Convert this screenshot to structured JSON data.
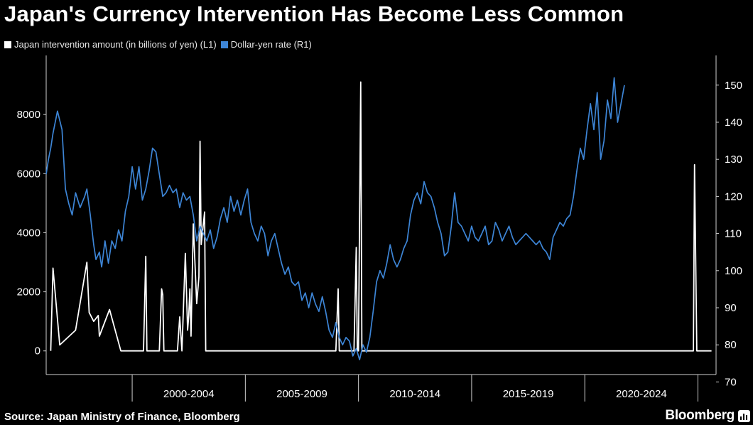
{
  "title": "Japan's Currency Intervention Has Become Less Common",
  "legend": [
    {
      "label": "Japan intervention amount (in billions of yen) (L1)",
      "color": "#ffffff"
    },
    {
      "label": "Dollar-yen rate (R1)",
      "color": "#3d85d6"
    }
  ],
  "source": "Source: Japan Ministry of Finance, Bloomberg",
  "brand": "Bloomberg",
  "chart_data": {
    "type": "line",
    "title": "Japan's Currency Intervention Has Become Less Common",
    "x_range": [
      1995.7,
      2025.3
    ],
    "x_periods": [
      "2000-2004",
      "2005-2009",
      "2010-2014",
      "2015-2019",
      "2020-2024"
    ],
    "y_left": {
      "label": "Japan intervention amount (in billions of yen)",
      "range": [
        -800,
        10000
      ],
      "ticks": [
        0,
        2000,
        4000,
        6000,
        8000
      ]
    },
    "y_right": {
      "label": "Dollar-yen rate",
      "range": [
        72,
        158
      ],
      "ticks": [
        70,
        80,
        90,
        100,
        110,
        120,
        130,
        140,
        150
      ]
    },
    "series": [
      {
        "name": "Japan intervention amount (in billions of yen) (L1)",
        "axis": "left",
        "color": "#ffffff",
        "points": [
          [
            1995.9,
            0
          ],
          [
            1996.0,
            2800
          ],
          [
            1996.3,
            200
          ],
          [
            1997.0,
            700
          ],
          [
            1997.5,
            3000
          ],
          [
            1997.6,
            1300
          ],
          [
            1997.8,
            1000
          ],
          [
            1998.0,
            1200
          ],
          [
            1998.05,
            500
          ],
          [
            1998.5,
            1400
          ],
          [
            1999.0,
            0
          ],
          [
            2000.0,
            0
          ],
          [
            2000.1,
            3200
          ],
          [
            2000.15,
            0
          ],
          [
            2000.7,
            0
          ],
          [
            2000.8,
            2100
          ],
          [
            2000.85,
            1900
          ],
          [
            2000.9,
            0
          ],
          [
            2001.5,
            0
          ],
          [
            2001.6,
            1150
          ],
          [
            2001.7,
            0
          ],
          [
            2001.85,
            3300
          ],
          [
            2001.95,
            700
          ],
          [
            2002.0,
            1200
          ],
          [
            2002.05,
            2100
          ],
          [
            2002.1,
            500
          ],
          [
            2002.2,
            4300
          ],
          [
            2002.35,
            1600
          ],
          [
            2002.45,
            2500
          ],
          [
            2002.5,
            7100
          ],
          [
            2002.55,
            3600
          ],
          [
            2002.7,
            4700
          ],
          [
            2002.75,
            0
          ],
          [
            2008.5,
            0
          ],
          [
            2008.6,
            2100
          ],
          [
            2008.65,
            0
          ],
          [
            2009.3,
            0
          ],
          [
            2009.4,
            3500
          ],
          [
            2009.45,
            0
          ],
          [
            2009.5,
            0
          ],
          [
            2009.6,
            9100
          ],
          [
            2009.65,
            0
          ],
          [
            2024.3,
            0
          ],
          [
            2024.35,
            6300
          ],
          [
            2024.45,
            0
          ],
          [
            2025.1,
            0
          ]
        ]
      },
      {
        "name": "Dollar-yen rate (R1)",
        "axis": "right",
        "color": "#3d85d6",
        "points": [
          [
            1995.7,
            126
          ],
          [
            1995.8,
            130
          ],
          [
            1995.9,
            133
          ],
          [
            1996.0,
            137
          ],
          [
            1996.2,
            143
          ],
          [
            1996.4,
            138
          ],
          [
            1996.55,
            122
          ],
          [
            1996.7,
            118
          ],
          [
            1996.85,
            115
          ],
          [
            1997.0,
            121
          ],
          [
            1997.2,
            117
          ],
          [
            1997.4,
            120
          ],
          [
            1997.5,
            122
          ],
          [
            1997.65,
            115
          ],
          [
            1997.8,
            107
          ],
          [
            1997.9,
            103
          ],
          [
            1998.05,
            105
          ],
          [
            1998.15,
            101
          ],
          [
            1998.3,
            108
          ],
          [
            1998.45,
            102
          ],
          [
            1998.6,
            108
          ],
          [
            1998.75,
            106
          ],
          [
            1998.9,
            111
          ],
          [
            1999.05,
            108
          ],
          [
            1999.2,
            116
          ],
          [
            1999.35,
            120
          ],
          [
            1999.5,
            128
          ],
          [
            1999.65,
            122
          ],
          [
            1999.8,
            128
          ],
          [
            1999.95,
            119
          ],
          [
            2000.1,
            122
          ],
          [
            2000.25,
            127
          ],
          [
            2000.4,
            133
          ],
          [
            2000.55,
            132
          ],
          [
            2000.7,
            126
          ],
          [
            2000.85,
            120
          ],
          [
            2001.0,
            121
          ],
          [
            2001.15,
            123
          ],
          [
            2001.3,
            121
          ],
          [
            2001.45,
            122
          ],
          [
            2001.6,
            117
          ],
          [
            2001.75,
            121
          ],
          [
            2001.9,
            119
          ],
          [
            2002.05,
            120
          ],
          [
            2002.2,
            115
          ],
          [
            2002.35,
            108
          ],
          [
            2002.5,
            112
          ],
          [
            2002.65,
            110
          ],
          [
            2002.8,
            108
          ],
          [
            2002.95,
            111
          ],
          [
            2003.1,
            106
          ],
          [
            2003.25,
            109
          ],
          [
            2003.4,
            114
          ],
          [
            2003.55,
            117
          ],
          [
            2003.7,
            113
          ],
          [
            2003.85,
            120
          ],
          [
            2004.0,
            116
          ],
          [
            2004.15,
            119
          ],
          [
            2004.3,
            115
          ],
          [
            2004.45,
            119
          ],
          [
            2004.6,
            122
          ],
          [
            2004.75,
            113
          ],
          [
            2004.9,
            110
          ],
          [
            2005.05,
            108
          ],
          [
            2005.2,
            112
          ],
          [
            2005.35,
            110
          ],
          [
            2005.5,
            104
          ],
          [
            2005.65,
            108
          ],
          [
            2005.8,
            110
          ],
          [
            2005.95,
            106
          ],
          [
            2006.1,
            102
          ],
          [
            2006.25,
            99
          ],
          [
            2006.4,
            101
          ],
          [
            2006.55,
            97
          ],
          [
            2006.7,
            96
          ],
          [
            2006.85,
            97
          ],
          [
            2007.0,
            92
          ],
          [
            2007.15,
            94
          ],
          [
            2007.3,
            90
          ],
          [
            2007.45,
            94
          ],
          [
            2007.6,
            91
          ],
          [
            2007.75,
            89
          ],
          [
            2007.9,
            93
          ],
          [
            2008.05,
            89
          ],
          [
            2008.2,
            84
          ],
          [
            2008.35,
            82
          ],
          [
            2008.5,
            86
          ],
          [
            2008.65,
            82
          ],
          [
            2008.8,
            80
          ],
          [
            2008.95,
            82
          ],
          [
            2009.1,
            81
          ],
          [
            2009.25,
            77
          ],
          [
            2009.4,
            79
          ],
          [
            2009.55,
            76
          ],
          [
            2009.7,
            80
          ],
          [
            2009.85,
            78
          ],
          [
            2010.0,
            82
          ],
          [
            2010.15,
            89
          ],
          [
            2010.3,
            97
          ],
          [
            2010.45,
            100
          ],
          [
            2010.6,
            98
          ],
          [
            2010.75,
            102
          ],
          [
            2010.9,
            107
          ],
          [
            2011.05,
            103
          ],
          [
            2011.2,
            101
          ],
          [
            2011.35,
            103
          ],
          [
            2011.5,
            106
          ],
          [
            2011.65,
            108
          ],
          [
            2011.8,
            115
          ],
          [
            2011.95,
            119
          ],
          [
            2012.1,
            121
          ],
          [
            2012.25,
            118
          ],
          [
            2012.4,
            124
          ],
          [
            2012.55,
            121
          ],
          [
            2012.7,
            120
          ],
          [
            2012.85,
            117
          ],
          [
            2013.0,
            113
          ],
          [
            2013.15,
            110
          ],
          [
            2013.3,
            104
          ],
          [
            2013.45,
            105
          ],
          [
            2013.6,
            112
          ],
          [
            2013.75,
            121
          ],
          [
            2013.9,
            113
          ],
          [
            2014.05,
            112
          ],
          [
            2014.2,
            110
          ],
          [
            2014.35,
            108
          ],
          [
            2014.5,
            112
          ],
          [
            2014.65,
            109
          ],
          [
            2014.8,
            108
          ],
          [
            2014.95,
            110
          ],
          [
            2015.1,
            112
          ],
          [
            2015.25,
            107
          ],
          [
            2015.4,
            108
          ],
          [
            2015.55,
            113
          ],
          [
            2015.7,
            111
          ],
          [
            2015.85,
            108
          ],
          [
            2016.0,
            110
          ],
          [
            2016.15,
            112
          ],
          [
            2016.3,
            109
          ],
          [
            2016.45,
            107
          ],
          [
            2016.6,
            108
          ],
          [
            2016.75,
            109
          ],
          [
            2016.9,
            110
          ],
          [
            2017.05,
            109
          ],
          [
            2017.2,
            108
          ],
          [
            2017.35,
            107
          ],
          [
            2017.5,
            108
          ],
          [
            2017.65,
            106
          ],
          [
            2017.8,
            105
          ],
          [
            2017.95,
            103
          ],
          [
            2018.1,
            109
          ],
          [
            2018.25,
            111
          ],
          [
            2018.4,
            113
          ],
          [
            2018.55,
            112
          ],
          [
            2018.7,
            114
          ],
          [
            2018.85,
            115
          ],
          [
            2019.0,
            120
          ],
          [
            2019.15,
            127
          ],
          [
            2019.3,
            133
          ],
          [
            2019.45,
            130
          ],
          [
            2019.6,
            138
          ],
          [
            2019.75,
            145
          ],
          [
            2019.9,
            138
          ],
          [
            2020.05,
            148
          ],
          [
            2020.2,
            130
          ],
          [
            2020.35,
            135
          ],
          [
            2020.5,
            146
          ],
          [
            2020.65,
            141
          ],
          [
            2020.8,
            152
          ],
          [
            2020.95,
            140
          ],
          [
            2021.1,
            145
          ],
          [
            2021.25,
            150
          ]
        ]
      }
    ]
  }
}
